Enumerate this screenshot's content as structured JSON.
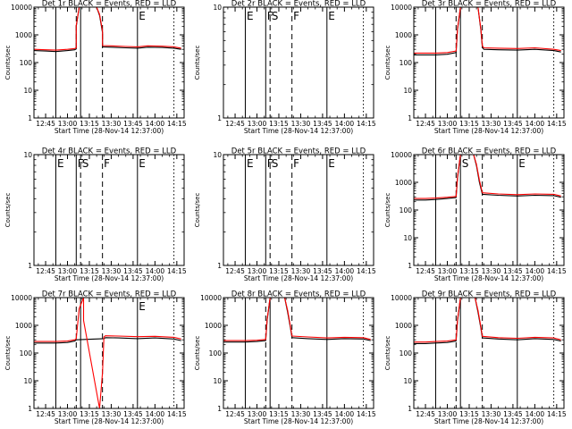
{
  "figure": {
    "colors": {
      "events": "#000000",
      "lld": "#ff0000",
      "axes": "#000000",
      "background": "#ffffff"
    }
  },
  "chart_data": [
    {
      "type": "line",
      "title": "Det 1r  BLACK = Events, RED = LLD",
      "xlabel": "Start Time (28-Nov-14 12:37:00)",
      "ylabel": "Counts/sec",
      "yscale": "log",
      "ylim": [
        1,
        10000
      ],
      "yticks": [
        "1",
        "10",
        "100",
        "1000",
        "10000"
      ],
      "xlim": [
        "12:37",
        "14:20"
      ],
      "xticks": [
        "12:45",
        "13:00",
        "13:15",
        "13:30",
        "13:45",
        "14:00",
        "14:15"
      ],
      "markers": [
        {
          "time": "12:52",
          "style": "solid",
          "label": ""
        },
        {
          "time": "13:06",
          "style": "dashed",
          "label": ""
        },
        {
          "time": "13:09",
          "style": "solid",
          "label": ""
        },
        {
          "time": "13:24",
          "style": "dashed",
          "label": ""
        },
        {
          "time": "13:48",
          "style": "solid",
          "label": "E"
        },
        {
          "time": "14:13",
          "style": "dotted",
          "label": ""
        }
      ],
      "series": [
        {
          "name": "Events",
          "color": "#000000",
          "x": [
            "12:37",
            "12:45",
            "12:52",
            "13:00",
            "13:05",
            "13:06",
            "13:06",
            "13:08",
            "13:10",
            "13:20",
            "13:22",
            "13:24",
            "13:24",
            "13:30",
            "13:40",
            "13:48",
            "13:55",
            "14:05",
            "14:13",
            "14:18"
          ],
          "y": [
            270,
            260,
            250,
            270,
            290,
            310,
            2000,
            10000,
            10000,
            10000,
            5000,
            1200,
            370,
            360,
            340,
            330,
            360,
            350,
            330,
            300
          ]
        },
        {
          "name": "LLD",
          "color": "#ff0000",
          "x": [
            "12:37",
            "12:45",
            "12:52",
            "13:00",
            "13:05",
            "13:06",
            "13:06",
            "13:08",
            "13:10",
            "13:20",
            "13:22",
            "13:24",
            "13:24",
            "13:30",
            "13:40",
            "13:48",
            "13:55",
            "14:05",
            "14:13",
            "14:18"
          ],
          "y": [
            300,
            290,
            280,
            300,
            320,
            340,
            2200,
            10000,
            10000,
            10000,
            5500,
            1400,
            410,
            400,
            380,
            370,
            400,
            390,
            370,
            330
          ]
        }
      ]
    },
    {
      "type": "line",
      "title": "Det 2r  BLACK = Events, RED = LLD",
      "xlabel": "Start Time (28-Nov-14 12:37:00)",
      "ylabel": "Counts/sec",
      "yscale": "log",
      "ylim": [
        1,
        10
      ],
      "yticks": [
        "1",
        "10"
      ],
      "xlim": [
        "12:37",
        "14:20"
      ],
      "xticks": [
        "12:45",
        "13:00",
        "13:15",
        "13:30",
        "13:45",
        "14:00",
        "14:15"
      ],
      "markers": [
        {
          "time": "12:52",
          "style": "solid",
          "label": "E"
        },
        {
          "time": "13:06",
          "style": "solid",
          "label": "F"
        },
        {
          "time": "13:09",
          "style": "dashed",
          "label": "S"
        },
        {
          "time": "13:24",
          "style": "dashed",
          "label": "F"
        },
        {
          "time": "13:48",
          "style": "solid",
          "label": "E"
        },
        {
          "time": "14:13",
          "style": "dotted",
          "label": ""
        }
      ],
      "series": []
    },
    {
      "type": "line",
      "title": "Det 3r  BLACK = Events, RED = LLD",
      "xlabel": "Start Time (28-Nov-14 12:37:00)",
      "ylabel": "Counts/sec",
      "yscale": "log",
      "ylim": [
        1,
        10000
      ],
      "yticks": [
        "1",
        "10",
        "100",
        "1000",
        "10000"
      ],
      "xlim": [
        "12:37",
        "14:20"
      ],
      "xticks": [
        "12:45",
        "13:00",
        "13:15",
        "13:30",
        "13:45",
        "14:00",
        "14:15"
      ],
      "markers": [
        {
          "time": "12:52",
          "style": "solid",
          "label": ""
        },
        {
          "time": "13:06",
          "style": "dashed",
          "label": ""
        },
        {
          "time": "13:09",
          "style": "solid",
          "label": ""
        },
        {
          "time": "13:24",
          "style": "dashed",
          "label": ""
        },
        {
          "time": "13:48",
          "style": "solid",
          "label": ""
        },
        {
          "time": "14:13",
          "style": "dotted",
          "label": ""
        }
      ],
      "series": [
        {
          "name": "Events",
          "color": "#000000",
          "x": [
            "12:37",
            "12:45",
            "12:52",
            "13:00",
            "13:06",
            "13:07",
            "13:09",
            "13:21",
            "13:23",
            "13:24",
            "13:25",
            "13:35",
            "13:48",
            "14:00",
            "14:13",
            "14:18"
          ],
          "y": [
            190,
            190,
            190,
            200,
            230,
            1500,
            10000,
            10000,
            1500,
            350,
            300,
            290,
            280,
            300,
            270,
            240
          ]
        },
        {
          "name": "LLD",
          "color": "#ff0000",
          "x": [
            "12:37",
            "12:45",
            "12:52",
            "13:00",
            "13:06",
            "13:07",
            "13:09",
            "13:21",
            "13:23",
            "13:24",
            "13:25",
            "13:35",
            "13:48",
            "14:00",
            "14:13",
            "14:18"
          ],
          "y": [
            220,
            220,
            220,
            230,
            260,
            1700,
            10000,
            10000,
            1700,
            400,
            340,
            330,
            320,
            340,
            300,
            270
          ]
        }
      ]
    },
    {
      "type": "line",
      "title": "Det 4r  BLACK = Events, RED = LLD",
      "xlabel": "Start Time (28-Nov-14 12:37:00)",
      "ylabel": "Counts/sec",
      "yscale": "log",
      "ylim": [
        1,
        10
      ],
      "yticks": [
        "1",
        "10"
      ],
      "xlim": [
        "12:37",
        "14:20"
      ],
      "xticks": [
        "12:45",
        "13:00",
        "13:15",
        "13:30",
        "13:45",
        "14:00",
        "14:15"
      ],
      "markers": [
        {
          "time": "12:52",
          "style": "solid",
          "label": "E"
        },
        {
          "time": "13:06",
          "style": "solid",
          "label": "F"
        },
        {
          "time": "13:09",
          "style": "dashed",
          "label": "S"
        },
        {
          "time": "13:24",
          "style": "dashed",
          "label": "F"
        },
        {
          "time": "13:48",
          "style": "solid",
          "label": "E"
        },
        {
          "time": "14:13",
          "style": "dotted",
          "label": ""
        }
      ],
      "series": []
    },
    {
      "type": "line",
      "title": "Det 5r  BLACK = Events, RED = LLD",
      "xlabel": "Start Time (28-Nov-14 12:37:00)",
      "ylabel": "Counts/sec",
      "yscale": "log",
      "ylim": [
        1,
        10
      ],
      "yticks": [
        "1",
        "10"
      ],
      "xlim": [
        "12:37",
        "14:20"
      ],
      "xticks": [
        "12:45",
        "13:00",
        "13:15",
        "13:30",
        "13:45",
        "14:00",
        "14:15"
      ],
      "markers": [
        {
          "time": "12:52",
          "style": "solid",
          "label": "E"
        },
        {
          "time": "13:06",
          "style": "solid",
          "label": "F"
        },
        {
          "time": "13:09",
          "style": "dashed",
          "label": "S"
        },
        {
          "time": "13:24",
          "style": "dashed",
          "label": "F"
        },
        {
          "time": "13:48",
          "style": "solid",
          "label": "E"
        },
        {
          "time": "14:13",
          "style": "dotted",
          "label": ""
        }
      ],
      "series": []
    },
    {
      "type": "line",
      "title": "Det 6r  BLACK = Events, RED = LLD",
      "xlabel": "Start Time (28-Nov-14 12:37:00)",
      "ylabel": "Counts/sec",
      "yscale": "log",
      "ylim": [
        1,
        10000
      ],
      "yticks": [
        "1",
        "10",
        "100",
        "1000",
        "10000"
      ],
      "xlim": [
        "12:37",
        "14:20"
      ],
      "xticks": [
        "12:45",
        "13:00",
        "13:15",
        "13:30",
        "13:45",
        "14:00",
        "14:15"
      ],
      "markers": [
        {
          "time": "12:52",
          "style": "solid",
          "label": ""
        },
        {
          "time": "13:06",
          "style": "dashed",
          "label": ""
        },
        {
          "time": "13:09",
          "style": "solid",
          "label": "S"
        },
        {
          "time": "13:24",
          "style": "dashed",
          "label": ""
        },
        {
          "time": "13:48",
          "style": "solid",
          "label": "E"
        },
        {
          "time": "14:13",
          "style": "dotted",
          "label": ""
        }
      ],
      "series": [
        {
          "name": "Events",
          "color": "#000000",
          "x": [
            "12:37",
            "12:45",
            "12:52",
            "13:00",
            "13:06",
            "13:07",
            "13:09",
            "13:18",
            "13:20",
            "13:22",
            "13:24",
            "13:35",
            "13:48",
            "14:00",
            "14:13",
            "14:18"
          ],
          "y": [
            230,
            230,
            240,
            260,
            280,
            1400,
            10000,
            10000,
            4000,
            1000,
            370,
            340,
            320,
            340,
            330,
            290
          ]
        },
        {
          "name": "LLD",
          "color": "#ff0000",
          "x": [
            "12:37",
            "12:45",
            "12:52",
            "13:00",
            "13:06",
            "13:07",
            "13:09",
            "13:18",
            "13:20",
            "13:22",
            "13:24",
            "13:35",
            "13:48",
            "14:00",
            "14:13",
            "14:18"
          ],
          "y": [
            260,
            260,
            270,
            290,
            310,
            1600,
            10000,
            10000,
            4500,
            1200,
            420,
            380,
            360,
            380,
            370,
            320
          ]
        }
      ]
    },
    {
      "type": "line",
      "title": "Det 7r  BLACK = Events, RED = LLD",
      "xlabel": "Start Time (28-Nov-14 12:37:00)",
      "ylabel": "Counts/sec",
      "yscale": "log",
      "ylim": [
        1,
        10000
      ],
      "yticks": [
        "1",
        "10",
        "100",
        "1000",
        "10000"
      ],
      "xlim": [
        "12:37",
        "14:20"
      ],
      "xticks": [
        "12:45",
        "13:00",
        "13:15",
        "13:30",
        "13:45",
        "14:00",
        "14:15"
      ],
      "markers": [
        {
          "time": "12:52",
          "style": "solid",
          "label": ""
        },
        {
          "time": "13:06",
          "style": "dashed",
          "label": ""
        },
        {
          "time": "13:09",
          "style": "solid",
          "label": ""
        },
        {
          "time": "13:24",
          "style": "dashed",
          "label": ""
        },
        {
          "time": "13:48",
          "style": "solid",
          "label": "E"
        },
        {
          "time": "14:13",
          "style": "dotted",
          "label": ""
        }
      ],
      "series": [
        {
          "name": "Events",
          "color": "#000000",
          "x": [
            "12:37",
            "12:45",
            "12:52",
            "13:00",
            "13:05",
            "13:06",
            "13:25",
            "13:26",
            "13:35",
            "13:48",
            "14:00",
            "14:13",
            "14:18"
          ],
          "y": [
            230,
            230,
            230,
            240,
            270,
            300,
            330,
            360,
            350,
            330,
            350,
            320,
            280
          ]
        },
        {
          "name": "LLD",
          "color": "#ff0000",
          "x": [
            "12:37",
            "12:45",
            "12:52",
            "13:00",
            "13:05",
            "13:06",
            "13:08",
            "13:11",
            "13:11",
            "13:22",
            "13:24",
            "13:25",
            "13:26",
            "13:35",
            "13:48",
            "14:00",
            "14:13",
            "14:18"
          ],
          "y": [
            260,
            260,
            260,
            270,
            300,
            330,
            4000,
            10000,
            1500,
            1,
            20,
            380,
            420,
            410,
            390,
            400,
            370,
            320
          ]
        }
      ]
    },
    {
      "type": "line",
      "title": "Det 8r  BLACK = Events, RED = LLD",
      "xlabel": "Start Time (28-Nov-14 12:37:00)",
      "ylabel": "Counts/sec",
      "yscale": "log",
      "ylim": [
        1,
        10000
      ],
      "yticks": [
        "1",
        "10",
        "100",
        "1000",
        "10000"
      ],
      "xlim": [
        "12:37",
        "14:20"
      ],
      "xticks": [
        "12:45",
        "13:00",
        "13:15",
        "13:30",
        "13:45",
        "14:00",
        "14:15"
      ],
      "markers": [
        {
          "time": "12:52",
          "style": "solid",
          "label": ""
        },
        {
          "time": "13:06",
          "style": "dashed",
          "label": ""
        },
        {
          "time": "13:09",
          "style": "solid",
          "label": ""
        },
        {
          "time": "13:24",
          "style": "dashed",
          "label": ""
        },
        {
          "time": "13:48",
          "style": "solid",
          "label": ""
        },
        {
          "time": "14:13",
          "style": "dotted",
          "label": ""
        }
      ],
      "series": [
        {
          "name": "Events",
          "color": "#000000",
          "x": [
            "12:37",
            "12:45",
            "12:52",
            "13:00",
            "13:06",
            "13:07",
            "13:09",
            "13:19",
            "13:21",
            "13:23",
            "13:24",
            "13:35",
            "13:48",
            "14:00",
            "14:13",
            "14:18"
          ],
          "y": [
            250,
            250,
            250,
            260,
            280,
            1500,
            10000,
            10000,
            3000,
            800,
            360,
            330,
            310,
            330,
            320,
            280
          ]
        },
        {
          "name": "LLD",
          "color": "#ff0000",
          "x": [
            "12:37",
            "12:45",
            "12:52",
            "13:00",
            "13:06",
            "13:07",
            "13:09",
            "13:19",
            "13:21",
            "13:23",
            "13:24",
            "13:35",
            "13:48",
            "14:00",
            "14:13",
            "14:18"
          ],
          "y": [
            280,
            280,
            280,
            290,
            310,
            1700,
            10000,
            10000,
            3500,
            900,
            410,
            380,
            350,
            370,
            360,
            310
          ]
        }
      ]
    },
    {
      "type": "line",
      "title": "Det 9r  BLACK = Events, RED = LLD",
      "xlabel": "Start Time (28-Nov-14 12:37:00)",
      "ylabel": "Counts/sec",
      "yscale": "log",
      "ylim": [
        1,
        10000
      ],
      "yticks": [
        "1",
        "10",
        "100",
        "1000",
        "10000"
      ],
      "xlim": [
        "12:37",
        "14:20"
      ],
      "xticks": [
        "12:45",
        "13:00",
        "13:15",
        "13:30",
        "13:45",
        "14:00",
        "14:15"
      ],
      "markers": [
        {
          "time": "12:52",
          "style": "solid",
          "label": ""
        },
        {
          "time": "13:06",
          "style": "dashed",
          "label": ""
        },
        {
          "time": "13:09",
          "style": "solid",
          "label": ""
        },
        {
          "time": "13:24",
          "style": "dashed",
          "label": ""
        },
        {
          "time": "13:48",
          "style": "solid",
          "label": ""
        },
        {
          "time": "14:13",
          "style": "dotted",
          "label": ""
        }
      ],
      "series": [
        {
          "name": "Events",
          "color": "#000000",
          "x": [
            "12:37",
            "12:45",
            "12:52",
            "13:00",
            "13:06",
            "13:07",
            "13:09",
            "13:19",
            "13:21",
            "13:23",
            "13:24",
            "13:35",
            "13:48",
            "14:00",
            "14:13",
            "14:18"
          ],
          "y": [
            220,
            220,
            230,
            240,
            270,
            1400,
            10000,
            10000,
            3000,
            800,
            350,
            320,
            300,
            330,
            310,
            270
          ]
        },
        {
          "name": "LLD",
          "color": "#ff0000",
          "x": [
            "12:37",
            "12:45",
            "12:52",
            "13:00",
            "13:06",
            "13:07",
            "13:09",
            "13:19",
            "13:21",
            "13:23",
            "13:24",
            "13:35",
            "13:48",
            "14:00",
            "14:13",
            "14:18"
          ],
          "y": [
            250,
            250,
            260,
            270,
            300,
            1600,
            10000,
            10000,
            3500,
            900,
            400,
            360,
            340,
            370,
            350,
            300
          ]
        }
      ]
    }
  ]
}
